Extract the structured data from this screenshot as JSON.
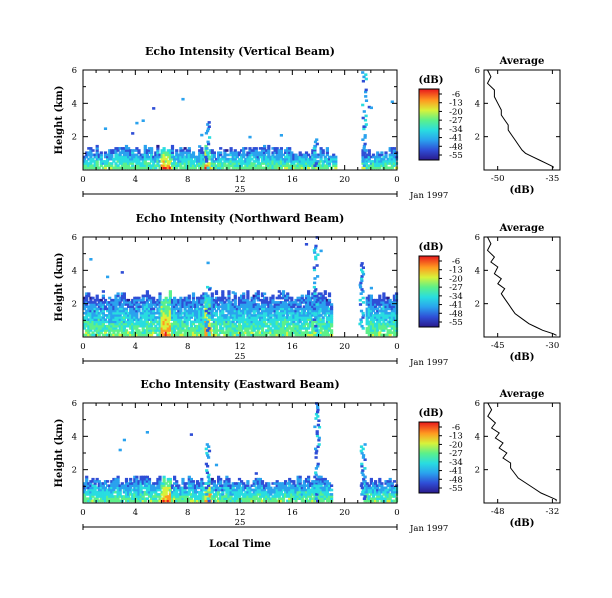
{
  "chart_data": [
    {
      "type": "heatmap",
      "title": "Echo Intensity (Vertical Beam)",
      "ylabel": "Height (km)",
      "ylim": [
        0,
        6
      ],
      "y_ticks": [
        "2",
        "4",
        "6"
      ],
      "xlim": [
        0,
        24
      ],
      "x_ticks": [
        "0",
        "4",
        "8",
        "12",
        "16",
        "20",
        "0"
      ],
      "date_label": "25",
      "month_label": "Jan 1997",
      "colorbar": {
        "unit": "(dB)",
        "ticks": [
          "-6",
          "-13",
          "-20",
          "-27",
          "-34",
          "-41",
          "-48",
          "-55"
        ],
        "range": [
          -55,
          -6
        ]
      },
      "average_profile": {
        "title": "Average",
        "xlabel": "(dB)",
        "x_ticks": [
          "-50",
          "-35"
        ],
        "y_ticks": [
          "2",
          "4",
          "6"
        ],
        "xlim": [
          -55,
          -33
        ],
        "ylim": [
          0,
          6
        ],
        "x": [
          -54,
          -53,
          -54,
          -52,
          -52,
          -51,
          -50,
          -50,
          -49,
          -48,
          -48,
          -47,
          -46,
          -45,
          -44,
          -43,
          -41,
          -39,
          -37,
          -35,
          -35
        ],
        "y": [
          6.0,
          5.6,
          5.2,
          4.8,
          4.4,
          4.0,
          3.6,
          3.3,
          3.0,
          2.7,
          2.4,
          2.1,
          1.8,
          1.5,
          1.2,
          1.0,
          0.8,
          0.6,
          0.4,
          0.2,
          0.1
        ]
      }
    },
    {
      "type": "heatmap",
      "title": "Echo Intensity (Northward Beam)",
      "ylabel": "Height (km)",
      "ylim": [
        0,
        6
      ],
      "y_ticks": [
        "2",
        "4",
        "6"
      ],
      "xlim": [
        0,
        24
      ],
      "x_ticks": [
        "0",
        "4",
        "8",
        "12",
        "16",
        "20",
        "0"
      ],
      "date_label": "25",
      "month_label": "Jan 1997",
      "colorbar": {
        "unit": "(dB)",
        "ticks": [
          "-6",
          "-13",
          "-20",
          "-27",
          "-34",
          "-41",
          "-48",
          "-55"
        ],
        "range": [
          -55,
          -6
        ]
      },
      "average_profile": {
        "title": "Average",
        "xlabel": "(dB)",
        "x_ticks": [
          "-45",
          "-30"
        ],
        "y_ticks": [
          "2",
          "4",
          "6"
        ],
        "xlim": [
          -50,
          -28
        ],
        "ylim": [
          0,
          6
        ],
        "x": [
          -49,
          -48,
          -49,
          -47,
          -48,
          -46,
          -47,
          -45,
          -46,
          -44,
          -45,
          -44,
          -43,
          -42,
          -41,
          -39,
          -37,
          -35,
          -33,
          -30,
          -29
        ],
        "y": [
          6.0,
          5.6,
          5.2,
          4.8,
          4.5,
          4.2,
          3.8,
          3.5,
          3.2,
          2.9,
          2.6,
          2.3,
          2.0,
          1.7,
          1.4,
          1.1,
          0.8,
          0.6,
          0.4,
          0.2,
          0.1
        ]
      }
    },
    {
      "type": "heatmap",
      "title": "Echo Intensity (Eastward Beam)",
      "ylabel": "Height (km)",
      "ylim": [
        0,
        6
      ],
      "y_ticks": [
        "2",
        "4",
        "6"
      ],
      "xlim": [
        0,
        24
      ],
      "x_ticks": [
        "0",
        "4",
        "8",
        "12",
        "16",
        "20",
        "0"
      ],
      "xlabel": "Local Time",
      "date_label": "25",
      "month_label": "Jan 1997",
      "colorbar": {
        "unit": "(dB)",
        "ticks": [
          "-6",
          "-13",
          "-20",
          "-27",
          "-34",
          "-41",
          "-48",
          "-55"
        ],
        "range": [
          -55,
          -6
        ]
      },
      "average_profile": {
        "title": "Average",
        "xlabel": "(dB)",
        "x_ticks": [
          "-48",
          "-32"
        ],
        "y_ticks": [
          "2",
          "4",
          "6"
        ],
        "xlim": [
          -51,
          -31
        ],
        "ylim": [
          0,
          6
        ],
        "x": [
          -50,
          -49,
          -50,
          -48,
          -49,
          -47,
          -48,
          -46,
          -47,
          -45,
          -46,
          -44,
          -44,
          -43,
          -42,
          -40,
          -38,
          -36,
          -34,
          -32,
          -32
        ],
        "y": [
          6.0,
          5.6,
          5.2,
          4.8,
          4.5,
          4.2,
          3.9,
          3.6,
          3.3,
          3.0,
          2.7,
          2.4,
          2.1,
          1.8,
          1.5,
          1.2,
          0.9,
          0.6,
          0.4,
          0.2,
          0.1
        ]
      }
    }
  ]
}
